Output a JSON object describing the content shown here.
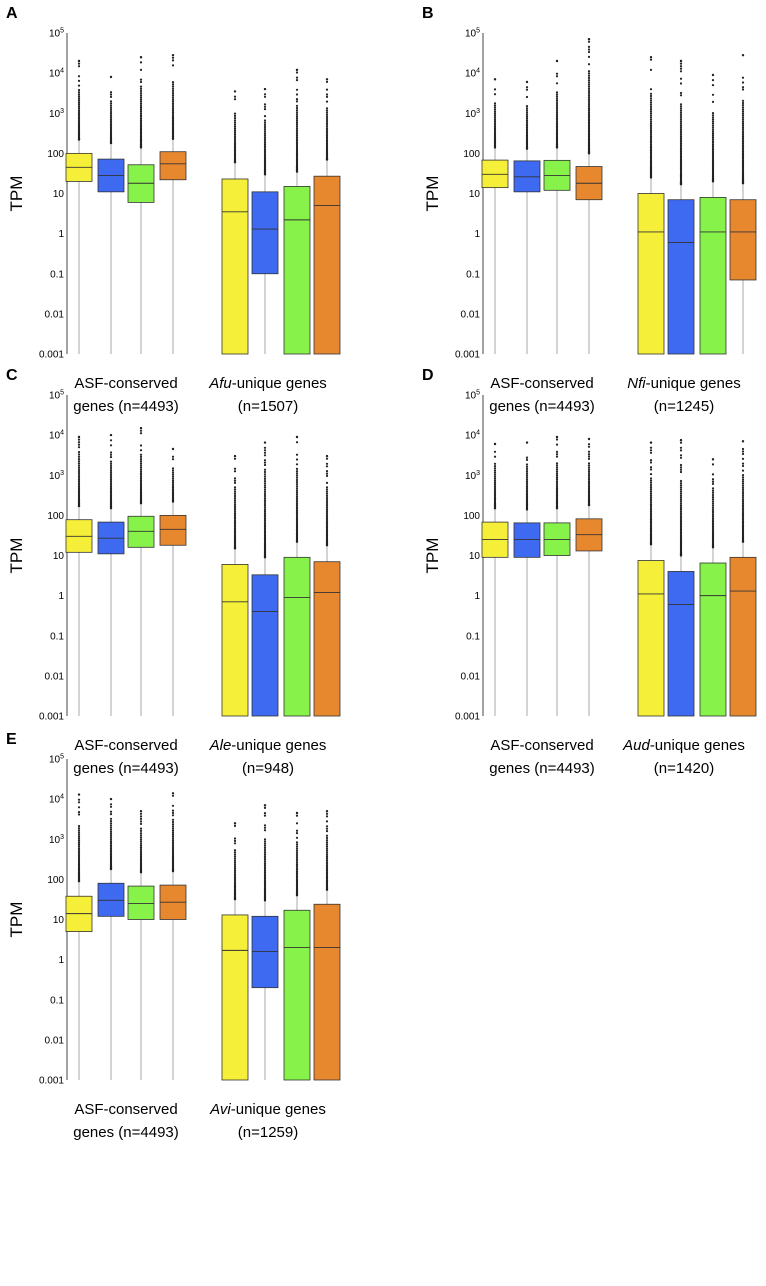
{
  "colors": {
    "yellow": "#f6ef3a",
    "blue": "#3e6af2",
    "green": "#86f24a",
    "orange": "#e8882e"
  },
  "chart_data": [
    {
      "panel": "A",
      "type": "boxplot",
      "ylabel": "TPM",
      "yscale": "log",
      "ylim": [
        0.001,
        100000
      ],
      "yticks": [
        "0.001",
        "0.01",
        "0.1",
        "1",
        "10",
        "100",
        "10^3",
        "10^4",
        "10^5"
      ],
      "groups": [
        {
          "label_line1": "ASF-conserved",
          "label_line2": "genes (n=4493)",
          "italic": ""
        },
        {
          "label_line1": "-unique genes",
          "label_line2": "(n=1507)",
          "italic": "Afu"
        }
      ],
      "boxes": [
        {
          "group": 0,
          "color": "yellow",
          "q1": 20,
          "median": 45,
          "q3": 100,
          "whisker_low": 0.001,
          "whisker_high": 220,
          "outlier_max": 20000
        },
        {
          "group": 0,
          "color": "blue",
          "q1": 11,
          "median": 28,
          "q3": 72,
          "whisker_low": 0.001,
          "whisker_high": 180,
          "outlier_max": 8000
        },
        {
          "group": 0,
          "color": "green",
          "q1": 6,
          "median": 18,
          "q3": 52,
          "whisker_low": 0.001,
          "whisker_high": 140,
          "outlier_max": 25000
        },
        {
          "group": 0,
          "color": "orange",
          "q1": 22,
          "median": 55,
          "q3": 110,
          "whisker_low": 0.001,
          "whisker_high": 230,
          "outlier_max": 28000
        },
        {
          "group": 1,
          "color": "yellow",
          "q1": 0.001,
          "median": 3.5,
          "q3": 23,
          "whisker_low": 0.001,
          "whisker_high": 60,
          "outlier_max": 3500
        },
        {
          "group": 1,
          "color": "blue",
          "q1": 0.1,
          "median": 1.3,
          "q3": 11,
          "whisker_low": 0.001,
          "whisker_high": 30,
          "outlier_max": 4000
        },
        {
          "group": 1,
          "color": "green",
          "q1": 0.001,
          "median": 2.2,
          "q3": 15,
          "whisker_low": 0.001,
          "whisker_high": 35,
          "outlier_max": 12000
        },
        {
          "group": 1,
          "color": "orange",
          "q1": 0.001,
          "median": 5,
          "q3": 27,
          "whisker_low": 0.001,
          "whisker_high": 70,
          "outlier_max": 7000
        }
      ]
    },
    {
      "panel": "B",
      "type": "boxplot",
      "ylabel": "TPM",
      "yscale": "log",
      "ylim": [
        0.001,
        100000
      ],
      "yticks": [
        "0.001",
        "0.01",
        "0.1",
        "1",
        "10",
        "100",
        "10^3",
        "10^4",
        "10^5"
      ],
      "groups": [
        {
          "label_line1": "ASF-conserved",
          "label_line2": "genes (n=4493)",
          "italic": ""
        },
        {
          "label_line1": "-unique genes",
          "label_line2": "(n=1245)",
          "italic": "Nfi"
        }
      ],
      "boxes": [
        {
          "group": 0,
          "color": "yellow",
          "q1": 14,
          "median": 30,
          "q3": 68,
          "whisker_low": 0.001,
          "whisker_high": 140,
          "outlier_max": 7000
        },
        {
          "group": 0,
          "color": "blue",
          "q1": 11,
          "median": 26,
          "q3": 65,
          "whisker_low": 0.001,
          "whisker_high": 130,
          "outlier_max": 6000
        },
        {
          "group": 0,
          "color": "green",
          "q1": 12,
          "median": 28,
          "q3": 67,
          "whisker_low": 0.001,
          "whisker_high": 140,
          "outlier_max": 20000
        },
        {
          "group": 0,
          "color": "orange",
          "q1": 7,
          "median": 18,
          "q3": 47,
          "whisker_low": 0.001,
          "whisker_high": 100,
          "outlier_max": 70000
        },
        {
          "group": 1,
          "color": "yellow",
          "q1": 0.001,
          "median": 1.1,
          "q3": 10,
          "whisker_low": 0.001,
          "whisker_high": 25,
          "outlier_max": 25000
        },
        {
          "group": 1,
          "color": "blue",
          "q1": 0.001,
          "median": 0.6,
          "q3": 7,
          "whisker_low": 0.001,
          "whisker_high": 17,
          "outlier_max": 20000
        },
        {
          "group": 1,
          "color": "green",
          "q1": 0.001,
          "median": 1.1,
          "q3": 8,
          "whisker_low": 0.001,
          "whisker_high": 20,
          "outlier_max": 9000
        },
        {
          "group": 1,
          "color": "orange",
          "q1": 0.07,
          "median": 1.1,
          "q3": 7,
          "whisker_low": 0.001,
          "whisker_high": 18,
          "outlier_max": 28000
        }
      ]
    },
    {
      "panel": "C",
      "type": "boxplot",
      "ylabel": "TPM",
      "yscale": "log",
      "ylim": [
        0.001,
        100000
      ],
      "yticks": [
        "0.001",
        "0.01",
        "0.1",
        "1",
        "10",
        "100",
        "10^3",
        "10^4",
        "10^5"
      ],
      "groups": [
        {
          "label_line1": "ASF-conserved",
          "label_line2": "genes (n=4493)",
          "italic": ""
        },
        {
          "label_line1": "-unique genes",
          "label_line2": "(n=948)",
          "italic": "Ale"
        }
      ],
      "boxes": [
        {
          "group": 0,
          "color": "yellow",
          "q1": 12,
          "median": 30,
          "q3": 78,
          "whisker_low": 0.001,
          "whisker_high": 170,
          "outlier_max": 9000
        },
        {
          "group": 0,
          "color": "blue",
          "q1": 11,
          "median": 27,
          "q3": 68,
          "whisker_low": 0.001,
          "whisker_high": 150,
          "outlier_max": 10000
        },
        {
          "group": 0,
          "color": "green",
          "q1": 16,
          "median": 40,
          "q3": 95,
          "whisker_low": 0.001,
          "whisker_high": 200,
          "outlier_max": 15000
        },
        {
          "group": 0,
          "color": "orange",
          "q1": 18,
          "median": 45,
          "q3": 100,
          "whisker_low": 0.001,
          "whisker_high": 220,
          "outlier_max": 4500
        },
        {
          "group": 1,
          "color": "yellow",
          "q1": 0.001,
          "median": 0.7,
          "q3": 6,
          "whisker_low": 0.001,
          "whisker_high": 15,
          "outlier_max": 3000
        },
        {
          "group": 1,
          "color": "blue",
          "q1": 0.001,
          "median": 0.4,
          "q3": 3.3,
          "whisker_low": 0.001,
          "whisker_high": 9,
          "outlier_max": 6500
        },
        {
          "group": 1,
          "color": "green",
          "q1": 0.001,
          "median": 0.9,
          "q3": 9,
          "whisker_low": 0.001,
          "whisker_high": 22,
          "outlier_max": 9000
        },
        {
          "group": 1,
          "color": "orange",
          "q1": 0.001,
          "median": 1.2,
          "q3": 7,
          "whisker_low": 0.001,
          "whisker_high": 18,
          "outlier_max": 3000
        }
      ]
    },
    {
      "panel": "D",
      "type": "boxplot",
      "ylabel": "TPM",
      "yscale": "log",
      "ylim": [
        0.001,
        100000
      ],
      "yticks": [
        "0.001",
        "0.01",
        "0.1",
        "1",
        "10",
        "100",
        "10^3",
        "10^4",
        "10^5"
      ],
      "groups": [
        {
          "label_line1": "ASF-conserved",
          "label_line2": "genes (n=4493)",
          "italic": ""
        },
        {
          "label_line1": "-unique genes",
          "label_line2": "(n=1420)",
          "italic": "Aud"
        }
      ],
      "boxes": [
        {
          "group": 0,
          "color": "yellow",
          "q1": 9,
          "median": 25,
          "q3": 68,
          "whisker_low": 0.001,
          "whisker_high": 150,
          "outlier_max": 6000
        },
        {
          "group": 0,
          "color": "blue",
          "q1": 9,
          "median": 25,
          "q3": 65,
          "whisker_low": 0.001,
          "whisker_high": 140,
          "outlier_max": 6500
        },
        {
          "group": 0,
          "color": "green",
          "q1": 10,
          "median": 25,
          "q3": 65,
          "whisker_low": 0.001,
          "whisker_high": 150,
          "outlier_max": 9000
        },
        {
          "group": 0,
          "color": "orange",
          "q1": 13,
          "median": 33,
          "q3": 82,
          "whisker_low": 0.001,
          "whisker_high": 180,
          "outlier_max": 8000
        },
        {
          "group": 1,
          "color": "yellow",
          "q1": 0.001,
          "median": 1.1,
          "q3": 7.5,
          "whisker_low": 0.001,
          "whisker_high": 19,
          "outlier_max": 6500
        },
        {
          "group": 1,
          "color": "blue",
          "q1": 0.001,
          "median": 0.6,
          "q3": 4,
          "whisker_low": 0.001,
          "whisker_high": 10,
          "outlier_max": 7500
        },
        {
          "group": 1,
          "color": "green",
          "q1": 0.001,
          "median": 1,
          "q3": 6.5,
          "whisker_low": 0.001,
          "whisker_high": 16,
          "outlier_max": 2500
        },
        {
          "group": 1,
          "color": "orange",
          "q1": 0.001,
          "median": 1.3,
          "q3": 9,
          "whisker_low": 0.001,
          "whisker_high": 22,
          "outlier_max": 7000
        }
      ]
    },
    {
      "panel": "E",
      "type": "boxplot",
      "ylabel": "TPM",
      "yscale": "log",
      "ylim": [
        0.001,
        100000
      ],
      "yticks": [
        "0.001",
        "0.01",
        "0.1",
        "1",
        "10",
        "100",
        "10^3",
        "10^4",
        "10^5"
      ],
      "groups": [
        {
          "label_line1": "ASF-conserved",
          "label_line2": "genes (n=4493)",
          "italic": ""
        },
        {
          "label_line1": "-unique genes",
          "label_line2": "(n=1259)",
          "italic": "Avi"
        }
      ],
      "boxes": [
        {
          "group": 0,
          "color": "yellow",
          "q1": 5,
          "median": 14,
          "q3": 38,
          "whisker_low": 0.001,
          "whisker_high": 90,
          "outlier_max": 13000
        },
        {
          "group": 0,
          "color": "blue",
          "q1": 12,
          "median": 30,
          "q3": 80,
          "whisker_low": 0.001,
          "whisker_high": 180,
          "outlier_max": 10000
        },
        {
          "group": 0,
          "color": "green",
          "q1": 10,
          "median": 25,
          "q3": 68,
          "whisker_low": 0.001,
          "whisker_high": 150,
          "outlier_max": 5000
        },
        {
          "group": 0,
          "color": "orange",
          "q1": 10,
          "median": 27,
          "q3": 72,
          "whisker_low": 0.001,
          "whisker_high": 160,
          "outlier_max": 14000
        },
        {
          "group": 1,
          "color": "yellow",
          "q1": 0.001,
          "median": 1.7,
          "q3": 13,
          "whisker_low": 0.001,
          "whisker_high": 32,
          "outlier_max": 2500
        },
        {
          "group": 1,
          "color": "blue",
          "q1": 0.2,
          "median": 1.6,
          "q3": 12,
          "whisker_low": 0.001,
          "whisker_high": 30,
          "outlier_max": 7000
        },
        {
          "group": 1,
          "color": "green",
          "q1": 0.001,
          "median": 2,
          "q3": 17,
          "whisker_low": 0.001,
          "whisker_high": 40,
          "outlier_max": 4500
        },
        {
          "group": 1,
          "color": "orange",
          "q1": 0.001,
          "median": 2,
          "q3": 24,
          "whisker_low": 0.001,
          "whisker_high": 55,
          "outlier_max": 5000
        }
      ]
    }
  ]
}
